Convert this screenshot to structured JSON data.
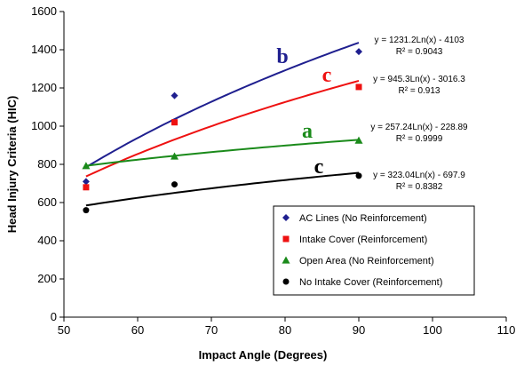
{
  "chart_data": {
    "type": "scatter",
    "xlabel": "Impact Angle (Degrees)",
    "ylabel": "Head Injury Criteria (HIC)",
    "xlim": [
      50,
      110
    ],
    "ylim": [
      0,
      1600
    ],
    "xticks": [
      50,
      60,
      70,
      80,
      90,
      100,
      110
    ],
    "yticks": [
      0,
      200,
      400,
      600,
      800,
      1000,
      1200,
      1400,
      1600
    ],
    "legend_position": "bottom-right",
    "series": [
      {
        "name": "AC Lines (No Reinforcement)",
        "color": "#1f1f8f",
        "marker": "diamond",
        "x": [
          53,
          65,
          90
        ],
        "y": [
          710,
          1160,
          1390
        ],
        "fit": {
          "a": 1231.2,
          "b": -4103
        },
        "equation": "y = 1231.2Ln(x) - 4103",
        "r2": "R² = 0.9043",
        "label": "b"
      },
      {
        "name": "Intake Cover (Reinforcement)",
        "color": "#ee1111",
        "marker": "square",
        "x": [
          53,
          65,
          90
        ],
        "y": [
          680,
          1020,
          1205
        ],
        "fit": {
          "a": 945.3,
          "b": -3016.3
        },
        "equation": "y = 945.3Ln(x) - 3016.3",
        "r2": "R² = 0.913",
        "label": "c"
      },
      {
        "name": "Open Area (No Reinforcement)",
        "color": "#1a8a1a",
        "marker": "triangle",
        "x": [
          53,
          65,
          90
        ],
        "y": [
          792,
          842,
          925
        ],
        "fit": {
          "a": 257.24,
          "b": -228.89
        },
        "equation": "y = 257.24Ln(x) - 228.89",
        "r2": "R² = 0.9999",
        "label": "a"
      },
      {
        "name": "No Intake Cover (Reinforcement)",
        "color": "#000000",
        "marker": "circle",
        "x": [
          53,
          65,
          90
        ],
        "y": [
          560,
          695,
          740
        ],
        "fit": {
          "a": 323.04,
          "b": -697.9
        },
        "equation": "y = 323.04Ln(x) - 697.9",
        "r2": "R² = 0.8382",
        "label": "c"
      }
    ]
  }
}
